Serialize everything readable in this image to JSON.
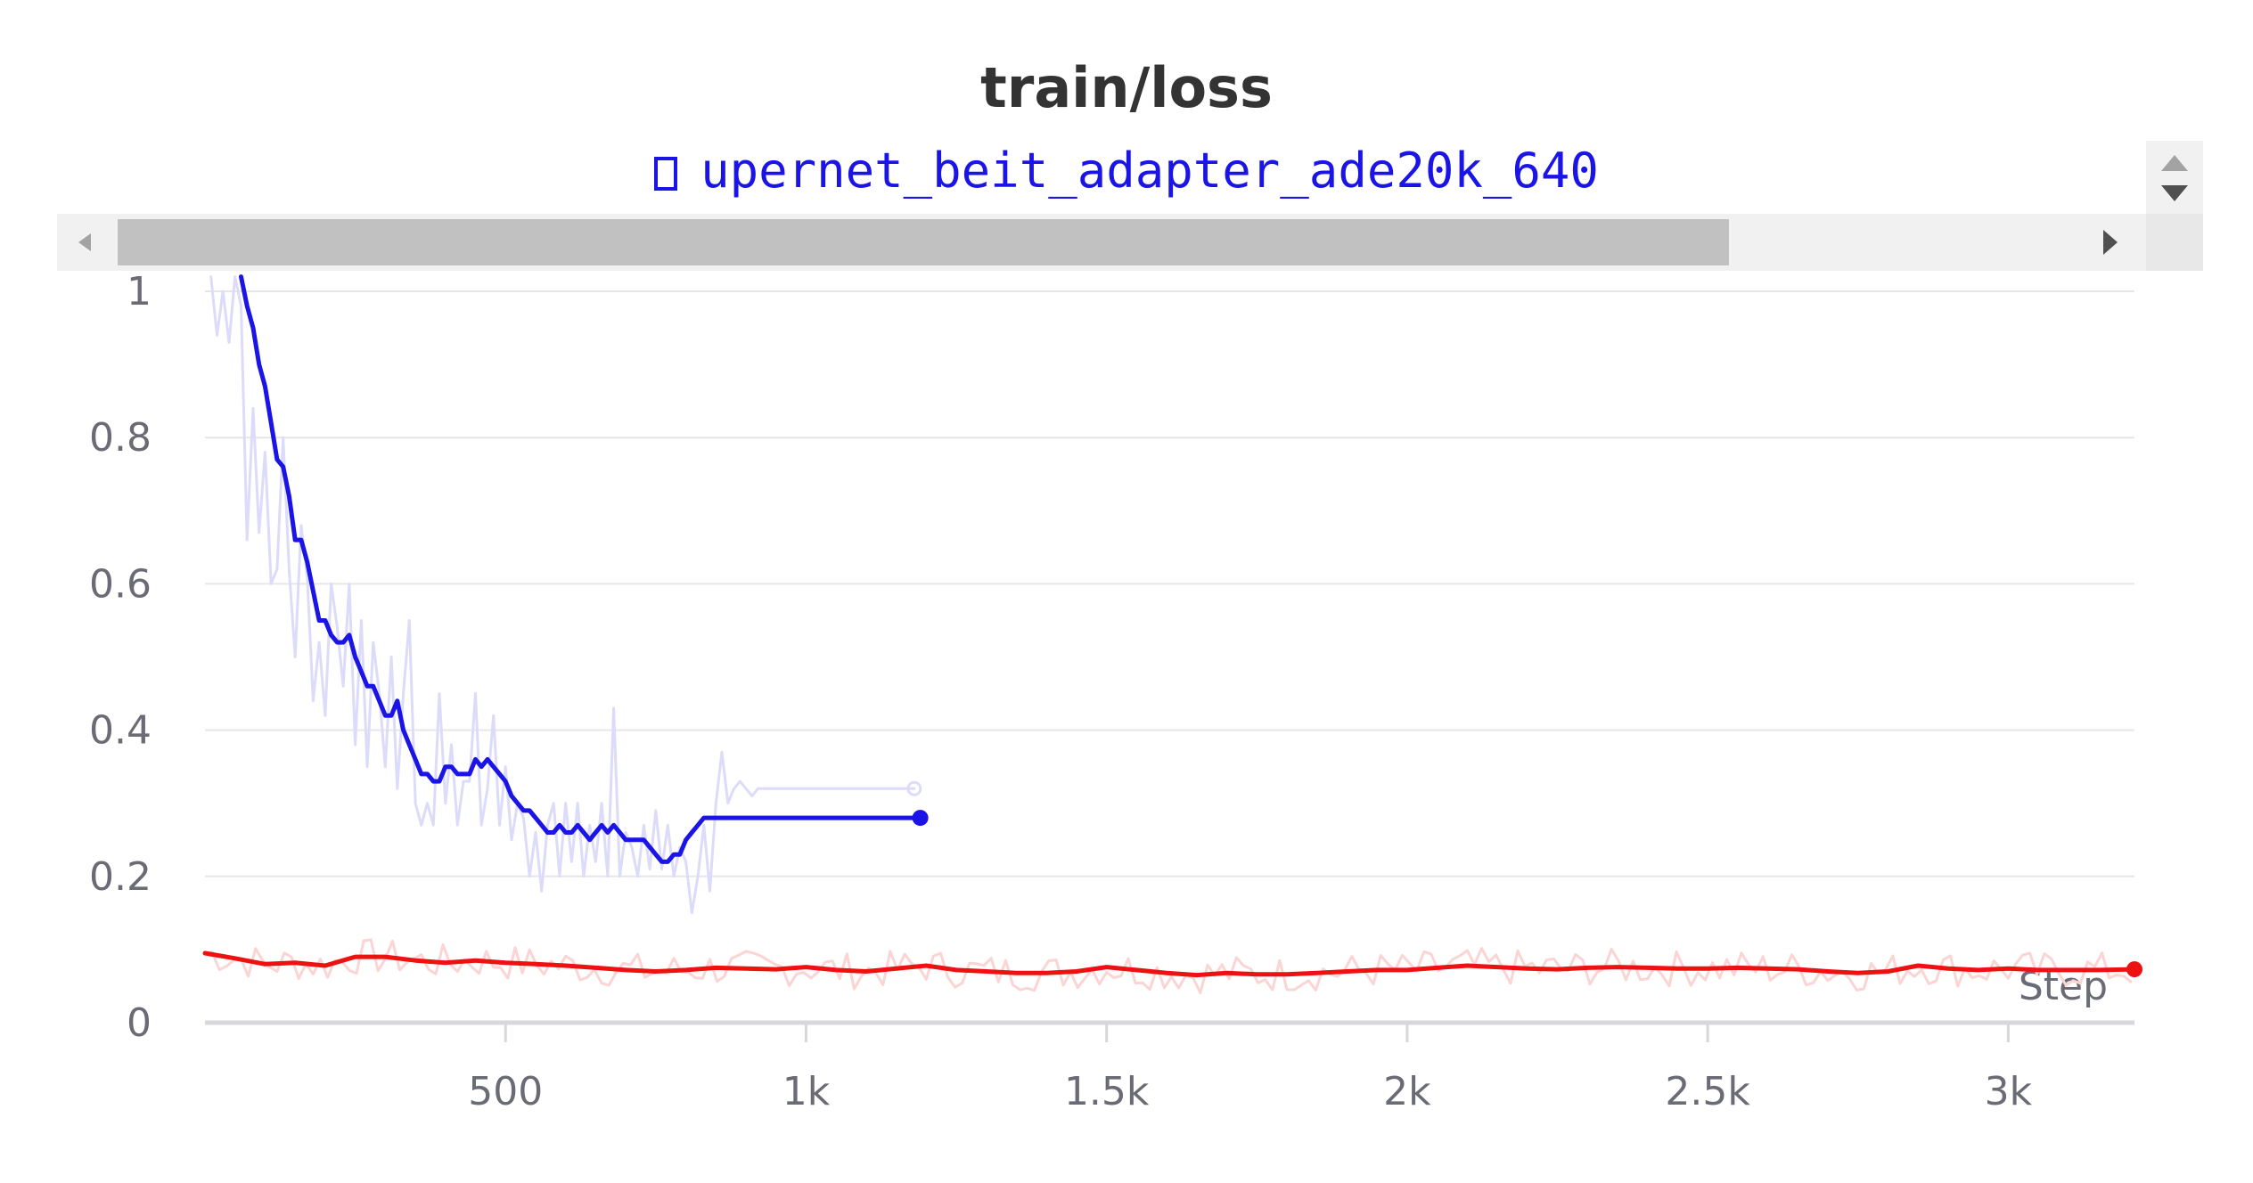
{
  "chart_data": {
    "type": "line",
    "title": "train/loss",
    "xlabel": "Step",
    "ylabel": "",
    "xlim": [
      0,
      3210
    ],
    "ylim": [
      0,
      1
    ],
    "x_ticks": [
      {
        "value": 500,
        "label": "500"
      },
      {
        "value": 1000,
        "label": "1k"
      },
      {
        "value": 1500,
        "label": "1.5k"
      },
      {
        "value": 2000,
        "label": "2k"
      },
      {
        "value": 2500,
        "label": "2.5k"
      },
      {
        "value": 3000,
        "label": "3k"
      }
    ],
    "y_ticks": [
      {
        "value": 0,
        "label": "0"
      },
      {
        "value": 0.2,
        "label": "0.2"
      },
      {
        "value": 0.4,
        "label": "0.4"
      },
      {
        "value": 0.6,
        "label": "0.6"
      },
      {
        "value": 0.8,
        "label": "0.8"
      },
      {
        "value": 1,
        "label": "1"
      }
    ],
    "grid": true,
    "legend_placement": "top-center",
    "series": [
      {
        "name": "upernet_beit_adapter_ade20k_640",
        "color": "#1a14e6",
        "raw_color": "#dcdcfa",
        "raw_x": [
          10,
          20,
          30,
          40,
          50,
          60,
          70,
          80,
          90,
          100,
          110,
          120,
          130,
          140,
          150,
          160,
          170,
          180,
          190,
          200,
          210,
          220,
          230,
          240,
          250,
          260,
          270,
          280,
          290,
          300,
          310,
          320,
          330,
          340,
          350,
          360,
          370,
          380,
          390,
          400,
          410,
          420,
          430,
          440,
          450,
          460,
          470,
          480,
          490,
          500,
          510,
          520,
          530,
          540,
          550,
          560,
          570,
          580,
          590,
          600,
          610,
          620,
          630,
          640,
          650,
          660,
          670,
          680,
          690,
          700,
          710,
          720,
          730,
          740,
          750,
          760,
          770,
          780,
          790,
          800,
          810,
          820,
          830,
          840,
          850,
          860,
          870,
          880,
          890,
          900,
          910,
          920,
          930,
          940,
          950,
          960,
          970,
          980,
          990,
          1000,
          1010,
          1020,
          1030,
          1040,
          1050,
          1060,
          1070,
          1080,
          1090,
          1100,
          1110,
          1120,
          1130,
          1140,
          1150,
          1160,
          1170,
          1180
        ],
        "raw_y": [
          1.02,
          0.94,
          1.0,
          0.93,
          1.02,
          0.98,
          0.66,
          0.84,
          0.67,
          0.78,
          0.6,
          0.62,
          0.8,
          0.62,
          0.5,
          0.68,
          0.61,
          0.44,
          0.52,
          0.42,
          0.6,
          0.54,
          0.46,
          0.6,
          0.38,
          0.55,
          0.35,
          0.52,
          0.45,
          0.35,
          0.5,
          0.32,
          0.45,
          0.55,
          0.3,
          0.27,
          0.3,
          0.27,
          0.45,
          0.3,
          0.38,
          0.27,
          0.33,
          0.33,
          0.45,
          0.27,
          0.32,
          0.42,
          0.27,
          0.35,
          0.25,
          0.3,
          0.28,
          0.2,
          0.26,
          0.18,
          0.27,
          0.3,
          0.2,
          0.3,
          0.22,
          0.3,
          0.2,
          0.27,
          0.22,
          0.3,
          0.2,
          0.43,
          0.2,
          0.26,
          0.24,
          0.2,
          0.27,
          0.21,
          0.29,
          0.21,
          0.27,
          0.2,
          0.24,
          0.22,
          0.15,
          0.2,
          0.27,
          0.18,
          0.3,
          0.37,
          0.3,
          0.32,
          0.33,
          0.32,
          0.31,
          0.32,
          0.32,
          0.32,
          0.32,
          0.32,
          0.32,
          0.32,
          0.32,
          0.32,
          0.32,
          0.32,
          0.32,
          0.32,
          0.32,
          0.32,
          0.32,
          0.32,
          0.32,
          0.32,
          0.32,
          0.32,
          0.32,
          0.32,
          0.32,
          0.32,
          0.32,
          0.32
        ],
        "x": [
          60,
          70,
          80,
          90,
          100,
          110,
          120,
          130,
          140,
          150,
          160,
          170,
          180,
          190,
          200,
          210,
          220,
          230,
          240,
          250,
          260,
          270,
          280,
          290,
          300,
          310,
          320,
          330,
          340,
          350,
          360,
          370,
          380,
          390,
          400,
          410,
          420,
          430,
          440,
          450,
          460,
          470,
          480,
          490,
          500,
          510,
          520,
          530,
          540,
          550,
          560,
          570,
          580,
          590,
          600,
          610,
          620,
          630,
          640,
          650,
          660,
          670,
          680,
          690,
          700,
          710,
          720,
          730,
          740,
          750,
          760,
          770,
          780,
          790,
          800,
          810,
          820,
          830,
          840,
          850,
          860,
          870,
          880,
          890,
          900,
          910,
          920,
          930,
          940,
          950,
          960,
          970,
          980,
          990,
          1000,
          1010,
          1020,
          1030,
          1040,
          1050,
          1060,
          1070,
          1080,
          1090,
          1100,
          1110,
          1120,
          1130,
          1140,
          1150,
          1160,
          1170,
          1180,
          1190
        ],
        "y": [
          1.02,
          0.98,
          0.95,
          0.9,
          0.87,
          0.82,
          0.77,
          0.76,
          0.72,
          0.66,
          0.66,
          0.63,
          0.59,
          0.55,
          0.55,
          0.53,
          0.52,
          0.52,
          0.53,
          0.5,
          0.48,
          0.46,
          0.46,
          0.44,
          0.42,
          0.42,
          0.44,
          0.4,
          0.38,
          0.36,
          0.34,
          0.34,
          0.33,
          0.33,
          0.35,
          0.35,
          0.34,
          0.34,
          0.34,
          0.36,
          0.35,
          0.36,
          0.35,
          0.34,
          0.33,
          0.31,
          0.3,
          0.29,
          0.29,
          0.28,
          0.27,
          0.26,
          0.26,
          0.27,
          0.26,
          0.26,
          0.27,
          0.26,
          0.25,
          0.26,
          0.27,
          0.26,
          0.27,
          0.26,
          0.25,
          0.25,
          0.25,
          0.25,
          0.24,
          0.23,
          0.22,
          0.22,
          0.23,
          0.23,
          0.25,
          0.26,
          0.27,
          0.28,
          0.28,
          0.28,
          0.28,
          0.28,
          0.28,
          0.28,
          0.28,
          0.28,
          0.28,
          0.28,
          0.28,
          0.28,
          0.28,
          0.28,
          0.28,
          0.28,
          0.28,
          0.28,
          0.28,
          0.28,
          0.28,
          0.28,
          0.28,
          0.28,
          0.28,
          0.28,
          0.28,
          0.28,
          0.28,
          0.28,
          0.28,
          0.28,
          0.28,
          0.28,
          0.28,
          0.28
        ]
      },
      {
        "name": "",
        "color": "#ee1111",
        "raw_color": "#fbd4d4",
        "x": [
          0,
          50,
          100,
          150,
          200,
          250,
          300,
          350,
          400,
          450,
          500,
          550,
          600,
          650,
          700,
          750,
          800,
          850,
          900,
          950,
          1000,
          1050,
          1100,
          1150,
          1200,
          1250,
          1300,
          1350,
          1400,
          1450,
          1500,
          1550,
          1600,
          1650,
          1700,
          1750,
          1800,
          1850,
          1900,
          1950,
          2000,
          2050,
          2100,
          2150,
          2200,
          2250,
          2300,
          2350,
          2400,
          2450,
          2500,
          2550,
          2600,
          2650,
          2700,
          2750,
          2800,
          2850,
          2900,
          2950,
          3000,
          3050,
          3100,
          3150,
          3210
        ],
        "y": [
          0.095,
          0.088,
          0.08,
          0.082,
          0.078,
          0.09,
          0.09,
          0.085,
          0.082,
          0.085,
          0.082,
          0.08,
          0.078,
          0.075,
          0.072,
          0.07,
          0.072,
          0.075,
          0.074,
          0.073,
          0.076,
          0.072,
          0.07,
          0.074,
          0.078,
          0.072,
          0.07,
          0.068,
          0.068,
          0.07,
          0.076,
          0.072,
          0.068,
          0.065,
          0.068,
          0.066,
          0.066,
          0.068,
          0.07,
          0.072,
          0.072,
          0.075,
          0.078,
          0.076,
          0.074,
          0.073,
          0.075,
          0.076,
          0.075,
          0.074,
          0.074,
          0.075,
          0.074,
          0.073,
          0.07,
          0.068,
          0.07,
          0.078,
          0.074,
          0.072,
          0.074,
          0.072,
          0.072,
          0.072,
          0.073
        ]
      }
    ]
  }
}
